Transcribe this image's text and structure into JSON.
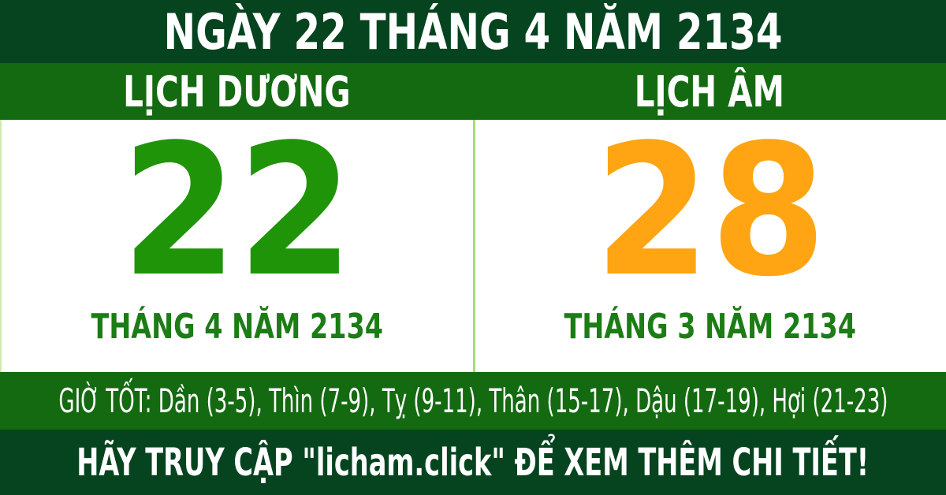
{
  "calendar": {
    "title": "NGÀY 22 THÁNG 4 NĂM 2134",
    "columns": [
      {
        "header": "LỊCH DƯƠNG",
        "day": "22",
        "month_label": "THÁNG 4 NĂM 2134",
        "day_color": "#1f9409"
      },
      {
        "header": "LỊCH ÂM",
        "day": "28",
        "month_label": "THÁNG 3 NĂM 2134",
        "day_color": "#ffa412"
      }
    ],
    "good_hours": "GIỜ TỐT: Dần (3-5), Thìn (7-9), Tỵ (9-11), Thân (15-17), Dậu (17-19), Hợi (21-23)",
    "footer": "HÃY TRUY CẬP \"licham.click\" ĐỂ XEM THÊM CHI TIẾT!",
    "colors": {
      "dark_green_bar": "#05441f",
      "medium_green_bar": "#146a10",
      "solar_day_green": "#1f9409",
      "lunar_day_orange": "#ffa412",
      "month_label_green": "#1c7c15",
      "divider_light_green": "#a6d97b",
      "text_white": "#ffffff",
      "panel_background": "#ffffff"
    }
  }
}
